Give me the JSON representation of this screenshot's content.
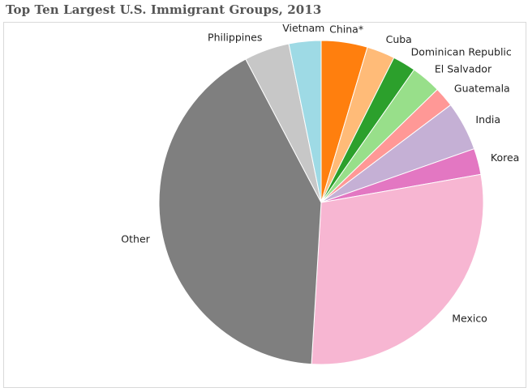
{
  "chart_data": {
    "type": "pie",
    "title": "Top Ten Largest U.S. Immigrant Groups, 2013",
    "start": "12 o'clock",
    "direction": "clockwise",
    "legend": "none (slice labels outside)",
    "slices": [
      {
        "label": "China*",
        "value": 4.6,
        "color": "#ff7f0e"
      },
      {
        "label": "Cuba",
        "value": 2.8,
        "color": "#ffbb78"
      },
      {
        "label": "Dominican Republic",
        "value": 2.3,
        "color": "#2ca02c"
      },
      {
        "label": "El Salvador",
        "value": 3.0,
        "color": "#98df8a"
      },
      {
        "label": "Guatemala",
        "value": 2.0,
        "color": "#ff9896"
      },
      {
        "label": "India",
        "value": 4.9,
        "color": "#c5b0d5"
      },
      {
        "label": "Korea",
        "value": 2.6,
        "color": "#e377c2"
      },
      {
        "label": "Mexico",
        "value": 28.7,
        "color": "#f7b6d2"
      },
      {
        "label": "Other",
        "value": 41.3,
        "color": "#7f7f7f"
      },
      {
        "label": "Philippines",
        "value": 4.5,
        "color": "#c7c7c7"
      },
      {
        "label": "Vietnam",
        "value": 3.2,
        "color": "#9edae5"
      }
    ]
  }
}
